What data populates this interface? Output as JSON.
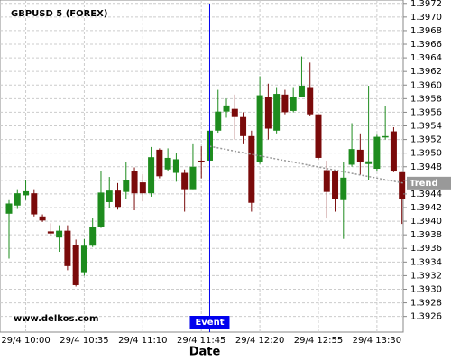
{
  "chart_data": {
    "type": "candlestick",
    "title": "GBPUSD 5 (FOREX)",
    "watermark": "www.delkos.com",
    "x_label": "Date",
    "categories": [
      null,
      null,
      "29/4 10:00",
      null,
      null,
      null,
      null,
      null,
      null,
      "29/4 10:35",
      null,
      null,
      null,
      null,
      null,
      null,
      "29/4 11:10",
      null,
      null,
      null,
      null,
      null,
      null,
      "29/4 11:45",
      null,
      null,
      null,
      null,
      null,
      null,
      "29/4 12:20",
      null,
      null,
      null,
      null,
      null,
      null,
      "29/4 12:55",
      null,
      null,
      null,
      null,
      null,
      null,
      "29/4 13:30",
      null,
      null,
      null
    ],
    "open": [
      1.39411,
      1.39423,
      1.39438,
      1.39441,
      1.39407,
      1.39385,
      1.39376,
      1.39386,
      1.39365,
      1.39325,
      1.39364,
      1.39391,
      1.39428,
      1.39445,
      1.39443,
      1.39474,
      1.39457,
      1.39441,
      1.39505,
      1.39476,
      1.39471,
      1.39471,
      1.39447,
      1.39489,
      1.39489,
      1.39533,
      1.39561,
      1.39565,
      1.39553,
      1.39525,
      1.39487,
      1.39583,
      1.39533,
      1.39586,
      1.39562,
      1.39582,
      1.39597,
      1.39557,
      1.39475,
      1.39473,
      1.39431,
      1.39483,
      1.39505,
      1.39484,
      1.39477,
      1.39523,
      1.39532,
      1.39472
    ],
    "high": [
      1.39431,
      1.39447,
      1.3946,
      1.39447,
      1.3941,
      1.39397,
      1.39394,
      1.39394,
      1.39373,
      1.39374,
      1.39405,
      1.39474,
      1.39465,
      1.39456,
      1.39487,
      1.39479,
      1.39469,
      1.39509,
      1.39507,
      1.39507,
      1.395,
      1.39476,
      1.39513,
      1.3951,
      1.39533,
      1.39593,
      1.3958,
      1.39586,
      1.3956,
      1.39533,
      1.39613,
      1.39602,
      1.39597,
      1.39593,
      1.39597,
      1.39642,
      1.39633,
      1.39557,
      1.39489,
      1.39473,
      1.39487,
      1.39544,
      1.39529,
      1.39599,
      1.39527,
      1.39569,
      1.39538,
      1.39472
    ],
    "low": [
      1.39345,
      1.39418,
      1.39431,
      1.39407,
      1.39399,
      1.39378,
      1.39355,
      1.39328,
      1.39304,
      1.3932,
      1.39362,
      1.3939,
      1.3942,
      1.39417,
      1.39432,
      1.39416,
      1.39429,
      1.39436,
      1.39463,
      1.39473,
      1.39458,
      1.39414,
      1.39447,
      1.39463,
      1.39487,
      1.3953,
      1.39552,
      1.3952,
      1.39513,
      1.39414,
      1.39484,
      1.3952,
      1.39529,
      1.39557,
      1.3956,
      1.39582,
      1.39554,
      1.39491,
      1.39404,
      1.39414,
      1.39374,
      1.3948,
      1.39468,
      1.3946,
      1.39473,
      1.3952,
      1.39472,
      1.39396
    ],
    "close": [
      1.39426,
      1.39441,
      1.39444,
      1.3941,
      1.39401,
      1.39382,
      1.39386,
      1.39334,
      1.39306,
      1.39364,
      1.39391,
      1.39442,
      1.39445,
      1.39421,
      1.39461,
      1.39441,
      1.39441,
      1.39494,
      1.39466,
      1.39493,
      1.39491,
      1.39447,
      1.3948,
      1.39487,
      1.39533,
      1.39561,
      1.3957,
      1.39553,
      1.39525,
      1.39427,
      1.39585,
      1.39536,
      1.39587,
      1.3956,
      1.39583,
      1.39599,
      1.39557,
      1.39493,
      1.39443,
      1.39432,
      1.39464,
      1.39506,
      1.39487,
      1.39488,
      1.39524,
      1.39525,
      1.39473,
      1.39433
    ],
    "up_color": "#1e8c1e",
    "down_color": "#7a0a0a",
    "ylim": [
      1.39237,
      1.39725
    ],
    "yticks": [
      1.3926,
      1.3928,
      {
        "value": 1.393,
        "label": "1.3930"
      },
      1.3932,
      1.3934,
      1.3936,
      1.3938,
      {
        "value": 1.394,
        "label": "1.3940"
      },
      1.3942,
      1.3944,
      1.3946,
      1.3948,
      {
        "value": 1.395,
        "label": "1.3950"
      },
      1.3952,
      1.3954,
      1.3956,
      1.3958,
      {
        "value": 1.396,
        "label": "1.3960"
      },
      1.3962,
      1.3964,
      1.3966,
      1.3968,
      {
        "value": 1.397,
        "label": "1.3970"
      },
      1.3972
    ],
    "grid": true,
    "trend": {
      "label": "Trend",
      "values": [
        1.3951,
        1.39456
      ],
      "color": "#999999"
    },
    "event": {
      "label": "Event",
      "index": 24,
      "color": "#0000ee"
    }
  }
}
